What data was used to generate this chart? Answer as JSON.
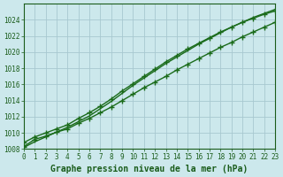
{
  "background_color": "#cce8ec",
  "grid_color": "#a8c8d0",
  "line_color": "#1a6b1a",
  "title": "Graphe pression niveau de la mer (hPa)",
  "xlim": [
    0,
    23
  ],
  "ylim": [
    1008,
    1026
  ],
  "xticks": [
    0,
    1,
    2,
    3,
    4,
    5,
    6,
    7,
    8,
    9,
    10,
    11,
    12,
    13,
    14,
    15,
    16,
    17,
    18,
    19,
    20,
    21,
    22,
    23
  ],
  "yticks": [
    1008,
    1010,
    1012,
    1014,
    1016,
    1018,
    1020,
    1022,
    1024
  ],
  "series_with_markers": [
    [
      1008.3,
      1009.2,
      1009.6,
      1010.1,
      1010.5,
      1011.2,
      1011.8,
      1012.5,
      1013.2,
      1014.0,
      1014.8,
      1015.6,
      1016.3,
      1017.0,
      1017.8,
      1018.5,
      1019.2,
      1019.9,
      1020.6,
      1021.2,
      1021.9,
      1022.5,
      1023.1,
      1023.7
    ],
    [
      1008.8,
      1009.5,
      1010.0,
      1010.5,
      1011.0,
      1011.8,
      1012.5,
      1013.3,
      1014.2,
      1015.2,
      1016.1,
      1017.0,
      1017.9,
      1018.8,
      1019.6,
      1020.4,
      1021.1,
      1021.8,
      1022.5,
      1023.1,
      1023.7,
      1024.2,
      1024.7,
      1025.1
    ]
  ],
  "series_smooth": [
    1008.2,
    1008.9,
    1009.5,
    1010.1,
    1010.7,
    1011.4,
    1012.1,
    1013.0,
    1013.9,
    1014.9,
    1015.9,
    1016.8,
    1017.7,
    1018.6,
    1019.4,
    1020.2,
    1021.0,
    1021.7,
    1022.4,
    1023.1,
    1023.7,
    1024.3,
    1024.8,
    1025.3
  ],
  "marker": "+",
  "markersize": 4,
  "linewidth": 1.0,
  "title_fontsize": 7,
  "tick_fontsize": 5.5,
  "title_color": "#1a5c1a",
  "tick_color": "#1a5c1a",
  "fig_bg": "#cce8ec",
  "plot_bg": "#cce8ec"
}
